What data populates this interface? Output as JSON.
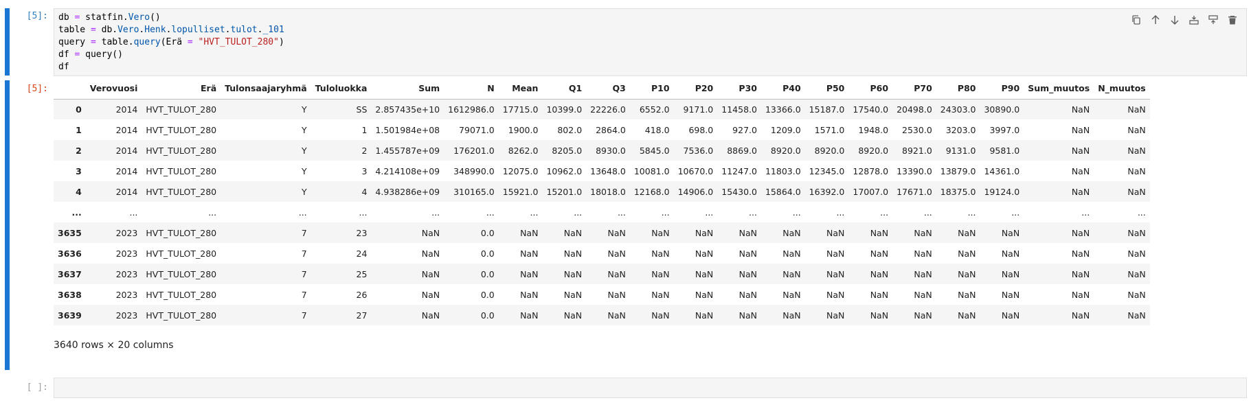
{
  "cell1": {
    "prompt": "[5]:",
    "code_lines": [
      [
        {
          "t": "db "
        },
        {
          "t": "=",
          "c": "op"
        },
        {
          "t": " statfin."
        },
        {
          "t": "Vero",
          "c": "attr"
        },
        {
          "t": "()"
        }
      ],
      [
        {
          "t": "table "
        },
        {
          "t": "=",
          "c": "op"
        },
        {
          "t": " db."
        },
        {
          "t": "Vero",
          "c": "attr"
        },
        {
          "t": "."
        },
        {
          "t": "Henk",
          "c": "attr"
        },
        {
          "t": "."
        },
        {
          "t": "lopulliset",
          "c": "attr"
        },
        {
          "t": "."
        },
        {
          "t": "tulot",
          "c": "attr"
        },
        {
          "t": "."
        },
        {
          "t": "_101",
          "c": "attr"
        }
      ],
      [
        {
          "t": "query "
        },
        {
          "t": "=",
          "c": "op"
        },
        {
          "t": " table."
        },
        {
          "t": "query",
          "c": "fn"
        },
        {
          "t": "(Erä "
        },
        {
          "t": "=",
          "c": "op"
        },
        {
          "t": " "
        },
        {
          "t": "\"HVT_TULOT_280\"",
          "c": "str"
        },
        {
          "t": ")"
        }
      ],
      [
        {
          "t": "df "
        },
        {
          "t": "=",
          "c": "op"
        },
        {
          "t": " query()"
        }
      ],
      [
        {
          "t": "df"
        }
      ]
    ],
    "toolbar_icons": [
      "duplicate-icon",
      "move-up-icon",
      "move-down-icon",
      "insert-below-icon",
      "insert-above-icon",
      "delete-icon"
    ]
  },
  "cell2": {
    "prompt": "[5]:",
    "columns": [
      "",
      "Verovuosi",
      "Erä",
      "Tulonsaajaryhmä",
      "Tuloluokka",
      "Sum",
      "N",
      "Mean",
      "Q1",
      "Q3",
      "P10",
      "P20",
      "P30",
      "P40",
      "P50",
      "P60",
      "P70",
      "P80",
      "P90",
      "Sum_muutos",
      "N_muutos"
    ],
    "rows": [
      [
        "0",
        "2014",
        "HVT_TULOT_280",
        "Y",
        "SS",
        "2.857435e+10",
        "1612986.0",
        "17715.0",
        "10399.0",
        "22226.0",
        "6552.0",
        "9171.0",
        "11458.0",
        "13366.0",
        "15187.0",
        "17540.0",
        "20498.0",
        "24303.0",
        "30890.0",
        "NaN",
        "NaN"
      ],
      [
        "1",
        "2014",
        "HVT_TULOT_280",
        "Y",
        "1",
        "1.501984e+08",
        "79071.0",
        "1900.0",
        "802.0",
        "2864.0",
        "418.0",
        "698.0",
        "927.0",
        "1209.0",
        "1571.0",
        "1948.0",
        "2530.0",
        "3203.0",
        "3997.0",
        "NaN",
        "NaN"
      ],
      [
        "2",
        "2014",
        "HVT_TULOT_280",
        "Y",
        "2",
        "1.455787e+09",
        "176201.0",
        "8262.0",
        "8205.0",
        "8930.0",
        "5845.0",
        "7536.0",
        "8869.0",
        "8920.0",
        "8920.0",
        "8920.0",
        "8921.0",
        "9131.0",
        "9581.0",
        "NaN",
        "NaN"
      ],
      [
        "3",
        "2014",
        "HVT_TULOT_280",
        "Y",
        "3",
        "4.214108e+09",
        "348990.0",
        "12075.0",
        "10962.0",
        "13648.0",
        "10081.0",
        "10670.0",
        "11247.0",
        "11803.0",
        "12345.0",
        "12878.0",
        "13390.0",
        "13879.0",
        "14361.0",
        "NaN",
        "NaN"
      ],
      [
        "4",
        "2014",
        "HVT_TULOT_280",
        "Y",
        "4",
        "4.938286e+09",
        "310165.0",
        "15921.0",
        "15201.0",
        "18018.0",
        "12168.0",
        "14906.0",
        "15430.0",
        "15864.0",
        "16392.0",
        "17007.0",
        "17671.0",
        "18375.0",
        "19124.0",
        "NaN",
        "NaN"
      ],
      [
        "...",
        "...",
        "...",
        "...",
        "...",
        "...",
        "...",
        "...",
        "...",
        "...",
        "...",
        "...",
        "...",
        "...",
        "...",
        "...",
        "...",
        "...",
        "...",
        "...",
        "..."
      ],
      [
        "3635",
        "2023",
        "HVT_TULOT_280",
        "7",
        "23",
        "NaN",
        "0.0",
        "NaN",
        "NaN",
        "NaN",
        "NaN",
        "NaN",
        "NaN",
        "NaN",
        "NaN",
        "NaN",
        "NaN",
        "NaN",
        "NaN",
        "NaN",
        "NaN"
      ],
      [
        "3636",
        "2023",
        "HVT_TULOT_280",
        "7",
        "24",
        "NaN",
        "0.0",
        "NaN",
        "NaN",
        "NaN",
        "NaN",
        "NaN",
        "NaN",
        "NaN",
        "NaN",
        "NaN",
        "NaN",
        "NaN",
        "NaN",
        "NaN",
        "NaN"
      ],
      [
        "3637",
        "2023",
        "HVT_TULOT_280",
        "7",
        "25",
        "NaN",
        "0.0",
        "NaN",
        "NaN",
        "NaN",
        "NaN",
        "NaN",
        "NaN",
        "NaN",
        "NaN",
        "NaN",
        "NaN",
        "NaN",
        "NaN",
        "NaN",
        "NaN"
      ],
      [
        "3638",
        "2023",
        "HVT_TULOT_280",
        "7",
        "26",
        "NaN",
        "0.0",
        "NaN",
        "NaN",
        "NaN",
        "NaN",
        "NaN",
        "NaN",
        "NaN",
        "NaN",
        "NaN",
        "NaN",
        "NaN",
        "NaN",
        "NaN",
        "NaN"
      ],
      [
        "3639",
        "2023",
        "HVT_TULOT_280",
        "7",
        "27",
        "NaN",
        "0.0",
        "NaN",
        "NaN",
        "NaN",
        "NaN",
        "NaN",
        "NaN",
        "NaN",
        "NaN",
        "NaN",
        "NaN",
        "NaN",
        "NaN",
        "NaN",
        "NaN"
      ]
    ],
    "shape": "3640 rows × 20 columns"
  },
  "cell3": {
    "prompt": "[ ]:"
  }
}
